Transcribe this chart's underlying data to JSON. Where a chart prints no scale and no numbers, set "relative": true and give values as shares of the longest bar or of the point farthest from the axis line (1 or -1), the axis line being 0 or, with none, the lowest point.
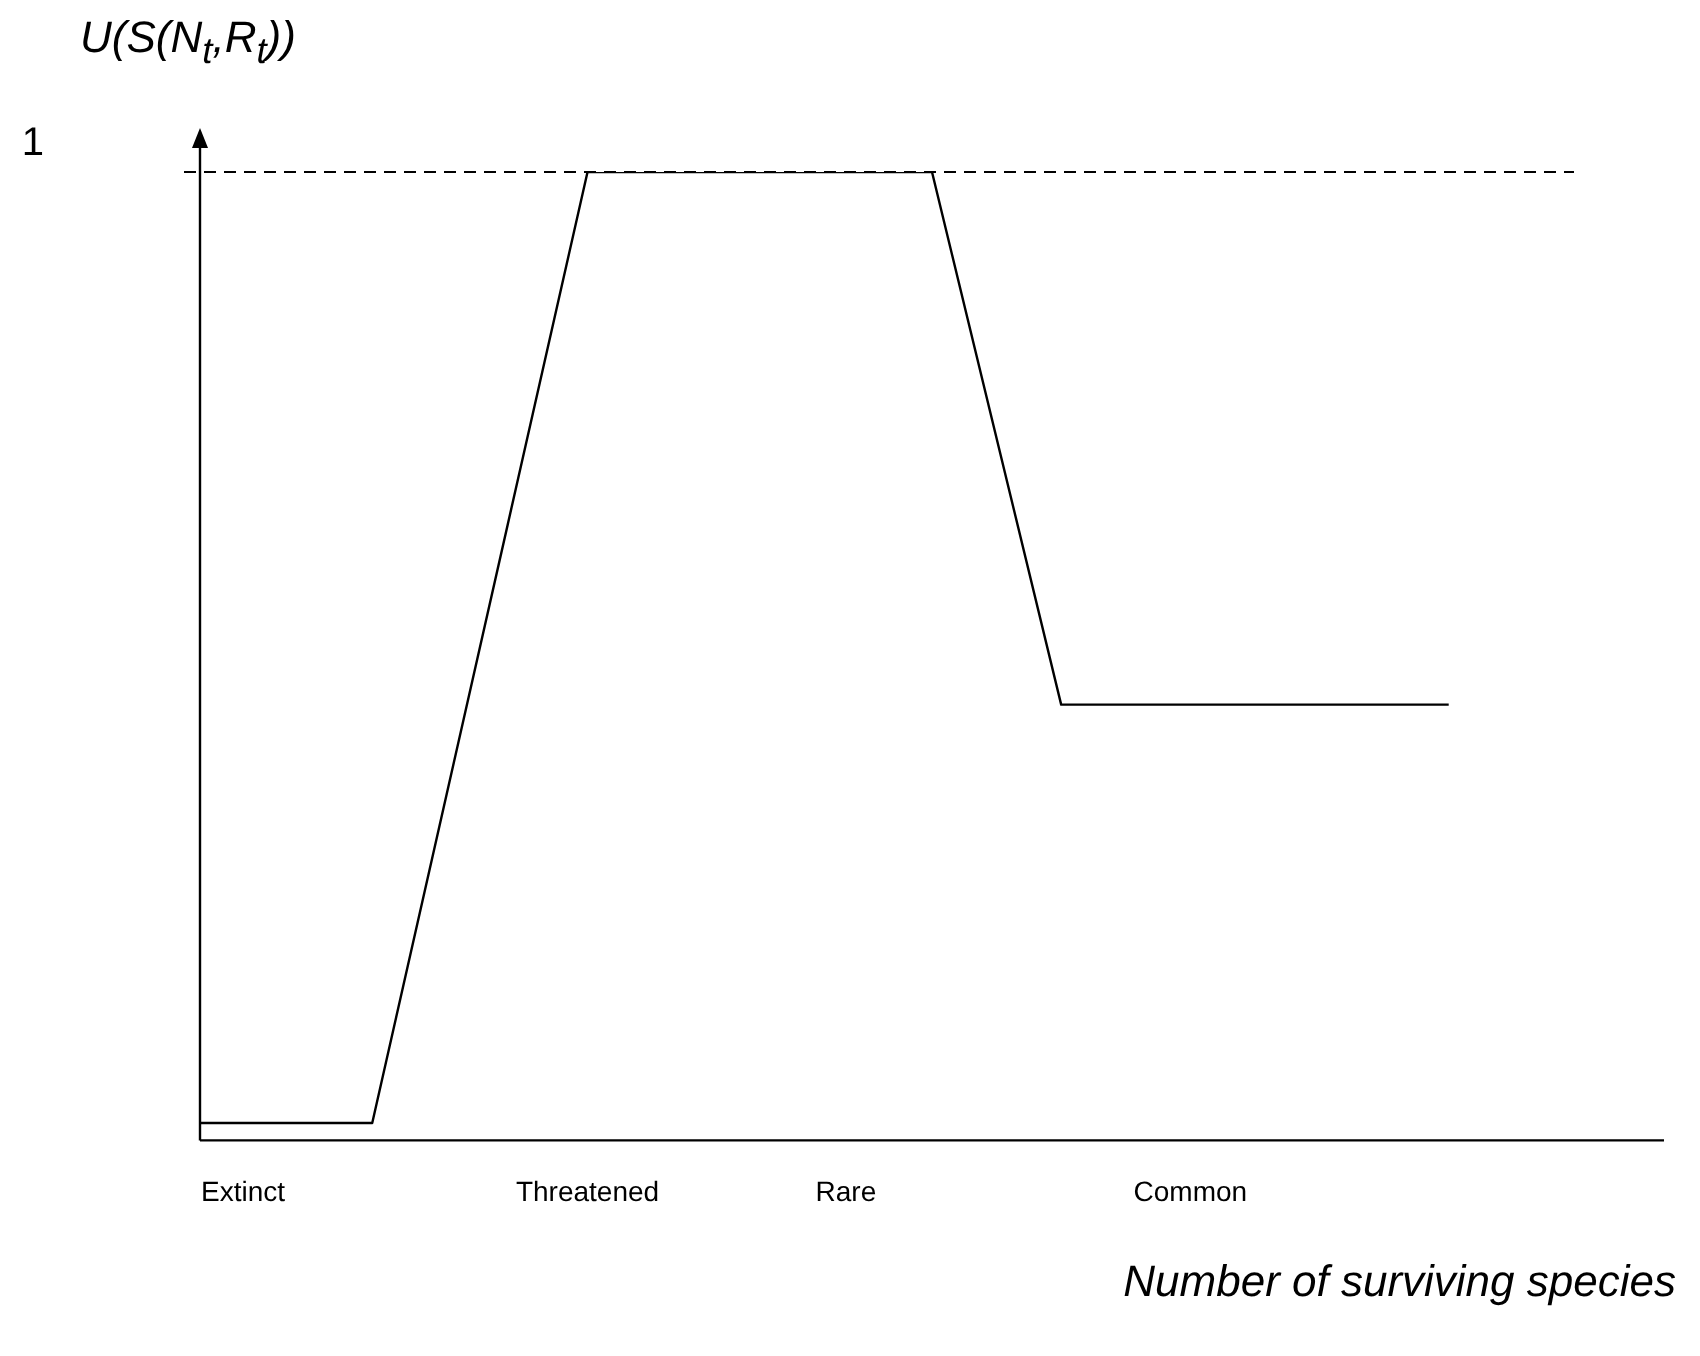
{
  "chart_data": {
    "type": "line",
    "relative": true,
    "ylabel": "U(S(N$_{t}$,R$_{t}$))",
    "xlabel": "Number of surviving species",
    "categories": [
      null,
      "Extinct",
      null,
      null,
      null,
      null,
      null,
      null,
      null,
      "Threatened",
      null,
      null,
      null,
      null,
      null,
      "Rare",
      null,
      null,
      null,
      null,
      null,
      null,
      null,
      "Common",
      null,
      null,
      null,
      null,
      null,
      null,
      null,
      null,
      null,
      null,
      null
    ],
    "series": [
      {
        "color": "#000000",
        "values": [
          0.018,
          null,
          null,
          null,
          0.018,
          null,
          null,
          null,
          null,
          1,
          null,
          null,
          null,
          null,
          null,
          null,
          null,
          1,
          null,
          null,
          0.45,
          null,
          null,
          null,
          null,
          null,
          null,
          null,
          null,
          0.45,
          null,
          null,
          null,
          null,
          null
        ]
      }
    ],
    "ref_lines": [
      {
        "axis": "y",
        "value": 1,
        "label": "1",
        "line_style": "dashed",
        "color": "#000000"
      }
    ],
    "grid": false,
    "legend": false,
    "marker": "none",
    "line_style": "solid"
  }
}
